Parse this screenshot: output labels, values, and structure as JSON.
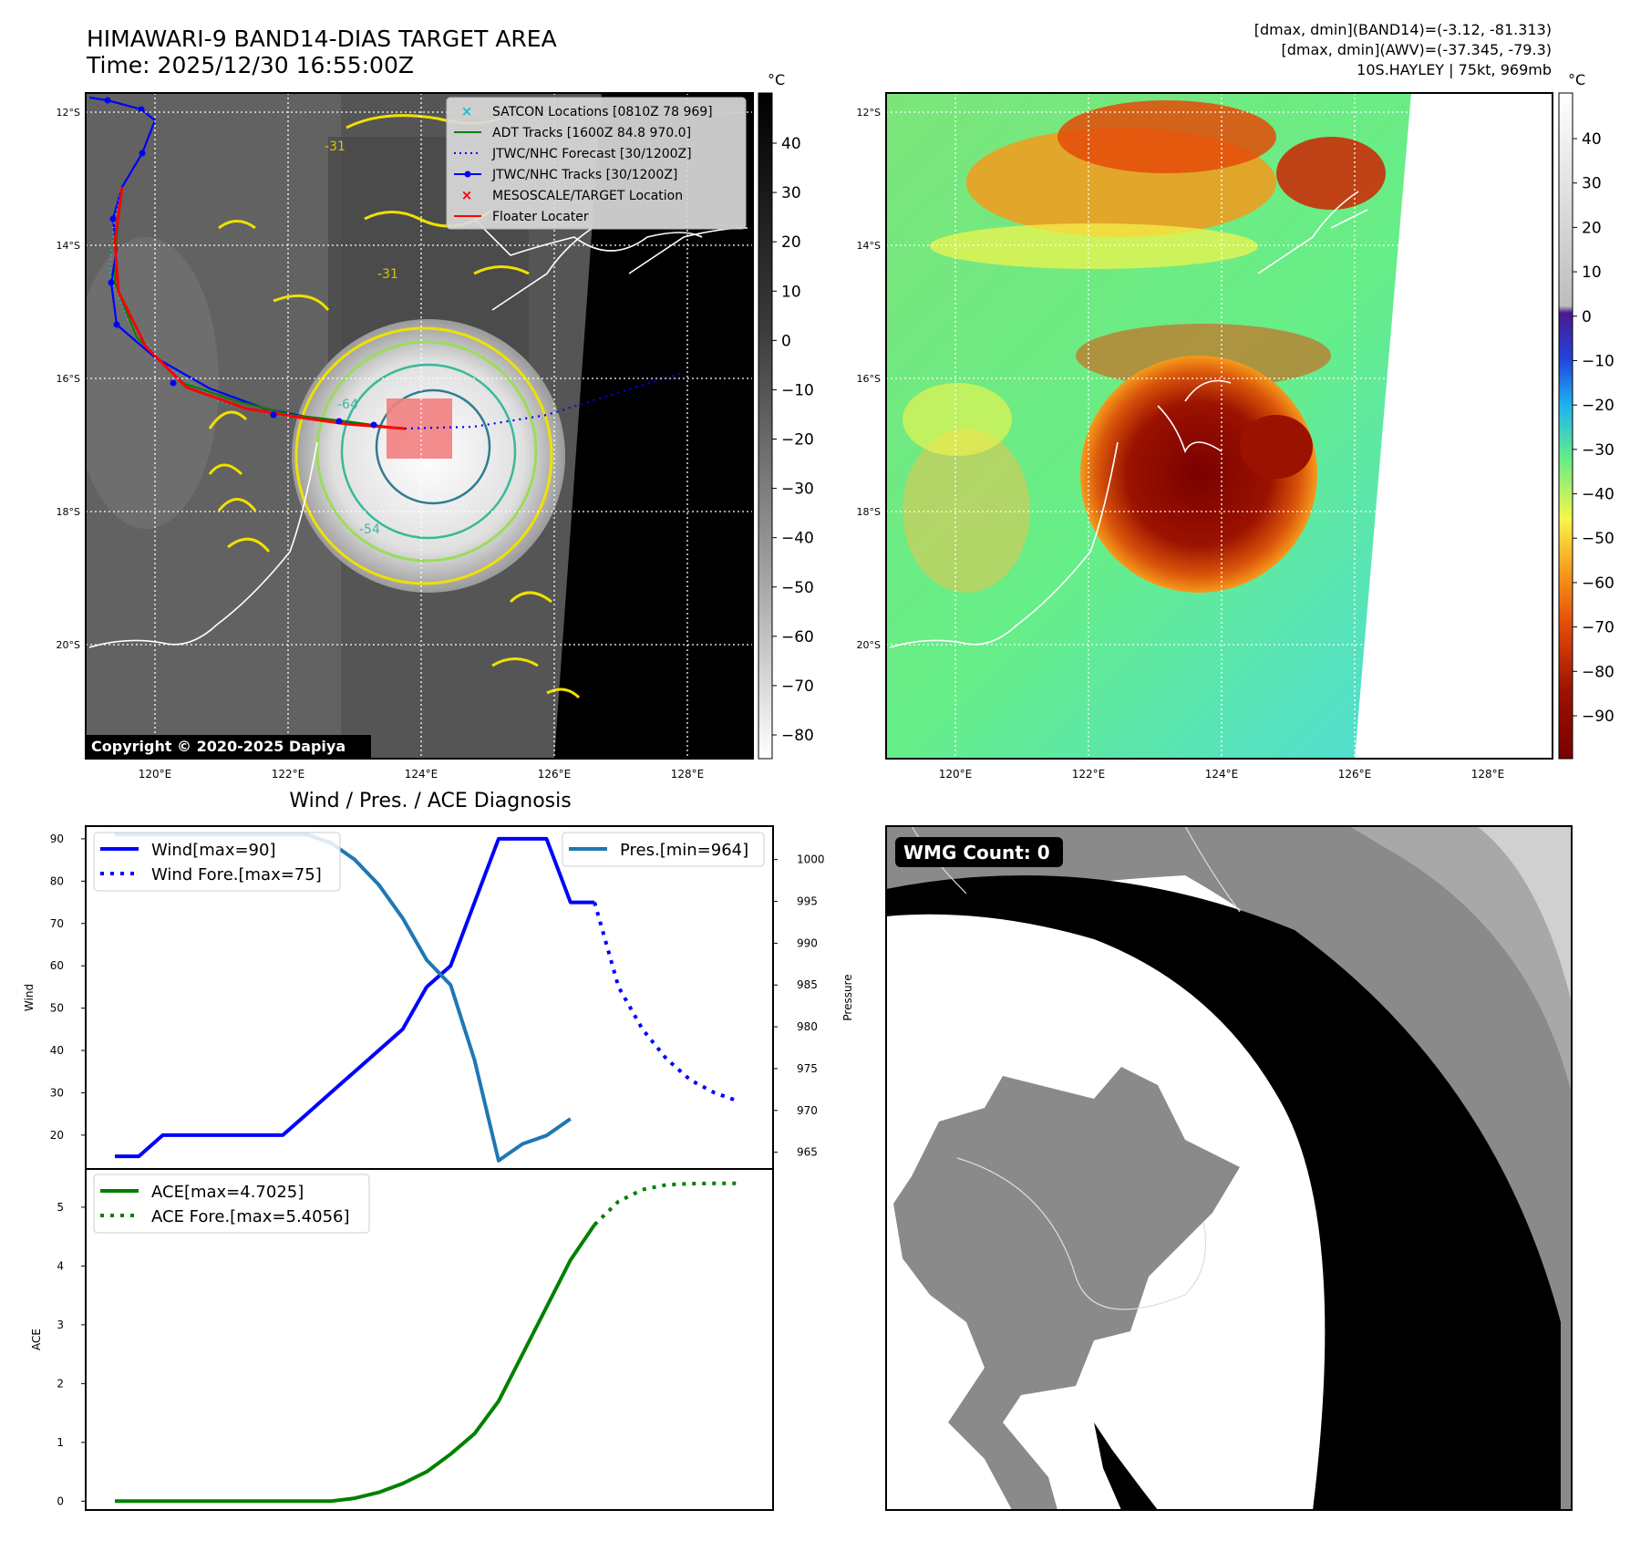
{
  "header": {
    "title_line1": "HIMAWARI-9 BAND14-DIAS TARGET AREA",
    "title_line2": "Time: 2025/12/30 16:55:00Z",
    "dmax_band14": "[dmax, dmin](BAND14)=(-3.12, -81.313)",
    "dmax_awv": "[dmax, dmin](AWV)=(-37.345, -79.3)",
    "storm_info": "10S.HAYLEY | 75kt, 969mb"
  },
  "copyright": "Copyright © 2020-2025 Dapiya",
  "map": {
    "lat_labels": [
      "12°S",
      "14°S",
      "16°S",
      "18°S",
      "20°S"
    ],
    "lon_labels": [
      "120°E",
      "122°E",
      "124°E",
      "126°E",
      "128°E"
    ],
    "legend": [
      {
        "label": "SATCON Locations [0810Z 78 969]",
        "color": "#17becf"
      },
      {
        "label": "ADT Tracks [1600Z 84.8 970.0]",
        "color": "#008000"
      },
      {
        "label": "JTWC/NHC Forecast [30/1200Z]",
        "color": "#0000ff"
      },
      {
        "label": "JTWC/NHC Tracks [30/1200Z]",
        "color": "#0000ff"
      },
      {
        "label": "MESOSCALE/TARGET Location",
        "color": "#ff0000"
      },
      {
        "label": "Floater Locater",
        "color": "#ff0000"
      }
    ],
    "contour_labels": [
      "-31",
      "-31",
      "-64",
      "-54"
    ]
  },
  "colorbar_gray": {
    "unit": "°C",
    "ticks": [
      "40",
      "30",
      "20",
      "10",
      "0",
      "−10",
      "−20",
      "−30",
      "−40",
      "−50",
      "−60",
      "−70",
      "−80"
    ]
  },
  "colorbar_awv": {
    "unit": "°C",
    "ticks": [
      "40",
      "30",
      "20",
      "10",
      "0",
      "−10",
      "−20",
      "−30",
      "−40",
      "−50",
      "−60",
      "−70",
      "−80",
      "−90"
    ]
  },
  "wmg": {
    "label": "WMG Count: 0"
  },
  "chart_data": [
    {
      "type": "line",
      "title": "Wind / Pres. / ACE Diagnosis",
      "ylabel": "Wind",
      "y2label": "Pressure",
      "ylim": [
        12,
        93
      ],
      "y2lim": [
        963,
        1004
      ],
      "yticks": [
        20,
        30,
        40,
        50,
        60,
        70,
        80,
        90
      ],
      "y2ticks": [
        965,
        970,
        975,
        980,
        985,
        990,
        995,
        1000
      ],
      "series": [
        {
          "name": "Wind[max=90]",
          "color": "#0000ff",
          "style": "solid",
          "x": [
            0,
            1,
            2,
            3,
            4,
            5,
            6,
            7,
            8,
            9,
            10,
            11,
            12,
            13,
            14,
            15,
            16,
            17,
            18,
            19,
            20
          ],
          "values": [
            15,
            15,
            20,
            20,
            20,
            20,
            20,
            20,
            25,
            30,
            35,
            40,
            45,
            55,
            60,
            75,
            90,
            90,
            90,
            75,
            75
          ]
        },
        {
          "name": "Wind Fore.[max=75]",
          "color": "#0000ff",
          "style": "dotted",
          "x": [
            20,
            21,
            22,
            23,
            24,
            25,
            26
          ],
          "values": [
            75,
            55,
            45,
            38,
            33,
            30,
            28
          ]
        },
        {
          "name": "Pres.[min=964]",
          "color": "#1f77b4",
          "style": "solid",
          "axis": "right",
          "x": [
            0,
            1,
            2,
            3,
            4,
            5,
            6,
            7,
            8,
            9,
            10,
            11,
            12,
            13,
            14,
            15,
            16,
            17,
            18,
            19
          ],
          "values": [
            1003,
            1003,
            1003,
            1003,
            1003,
            1003,
            1003,
            1003,
            1003,
            1002,
            1000,
            997,
            993,
            988,
            985,
            976,
            964,
            966,
            967,
            969
          ]
        }
      ]
    },
    {
      "type": "line",
      "ylabel": "ACE",
      "ylim": [
        -0.15,
        5.65
      ],
      "yticks": [
        0,
        1,
        2,
        3,
        4,
        5
      ],
      "series": [
        {
          "name": "ACE[max=4.7025]",
          "color": "#008000",
          "style": "solid",
          "x": [
            0,
            1,
            2,
            3,
            4,
            5,
            6,
            7,
            8,
            9,
            10,
            11,
            12,
            13,
            14,
            15,
            16,
            17,
            18,
            19,
            20
          ],
          "values": [
            0,
            0,
            0,
            0,
            0,
            0,
            0,
            0,
            0,
            0,
            0.05,
            0.15,
            0.3,
            0.5,
            0.8,
            1.15,
            1.7,
            2.5,
            3.3,
            4.1,
            4.7025
          ]
        },
        {
          "name": "ACE Fore.[max=5.4056]",
          "color": "#008000",
          "style": "dotted",
          "x": [
            20,
            21,
            22,
            23,
            24,
            25,
            26
          ],
          "values": [
            4.7025,
            5.1,
            5.3,
            5.38,
            5.4,
            5.4056,
            5.4056
          ]
        }
      ]
    }
  ]
}
